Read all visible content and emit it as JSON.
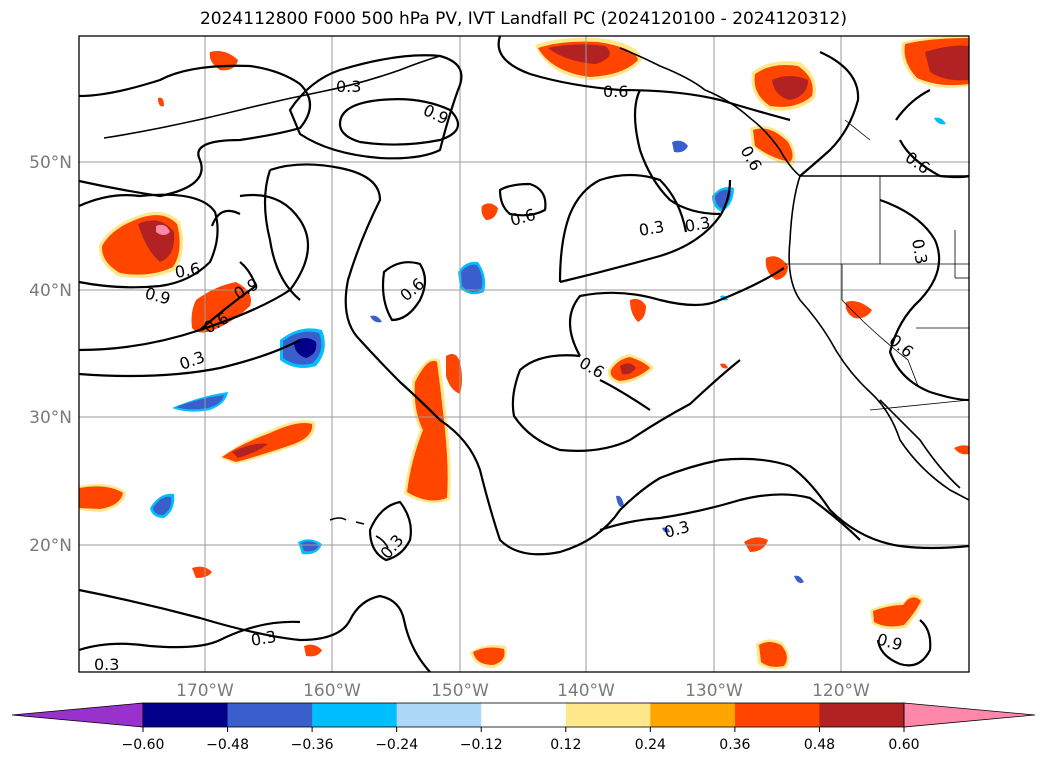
{
  "title": "2024112800 F000 500 hPa PV, IVT Landfall PC (2024120100 - 2024120312)",
  "map": {
    "lat_labels": [
      "50°N",
      "40°N",
      "30°N",
      "20°N"
    ],
    "lon_labels": [
      "170°W",
      "160°W",
      "150°W",
      "140°W",
      "130°W",
      "120°W"
    ],
    "contour_labels": [
      "0.3",
      "0.3",
      "0.3",
      "0.3",
      "0.3",
      "0.3",
      "0.3",
      "0.3",
      "0.3",
      "0.6",
      "0.6",
      "0.6",
      "0.6",
      "0.6",
      "0.6",
      "0.6",
      "0.6",
      "0.6",
      "0.9",
      "0.9",
      "0.9",
      "0.9"
    ]
  },
  "colorbar": {
    "ticks": [
      "−0.60",
      "−0.48",
      "−0.36",
      "−0.24",
      "−0.12",
      "0.12",
      "0.24",
      "0.36",
      "0.48",
      "0.60"
    ],
    "colors": [
      "#9932cc",
      "#00008b",
      "#3a5fcd",
      "#00bfff",
      "#add8f7",
      "#ffffff",
      "#ffe88a",
      "#ffa500",
      "#ff4500",
      "#b22222",
      "#ff88aa"
    ]
  }
}
